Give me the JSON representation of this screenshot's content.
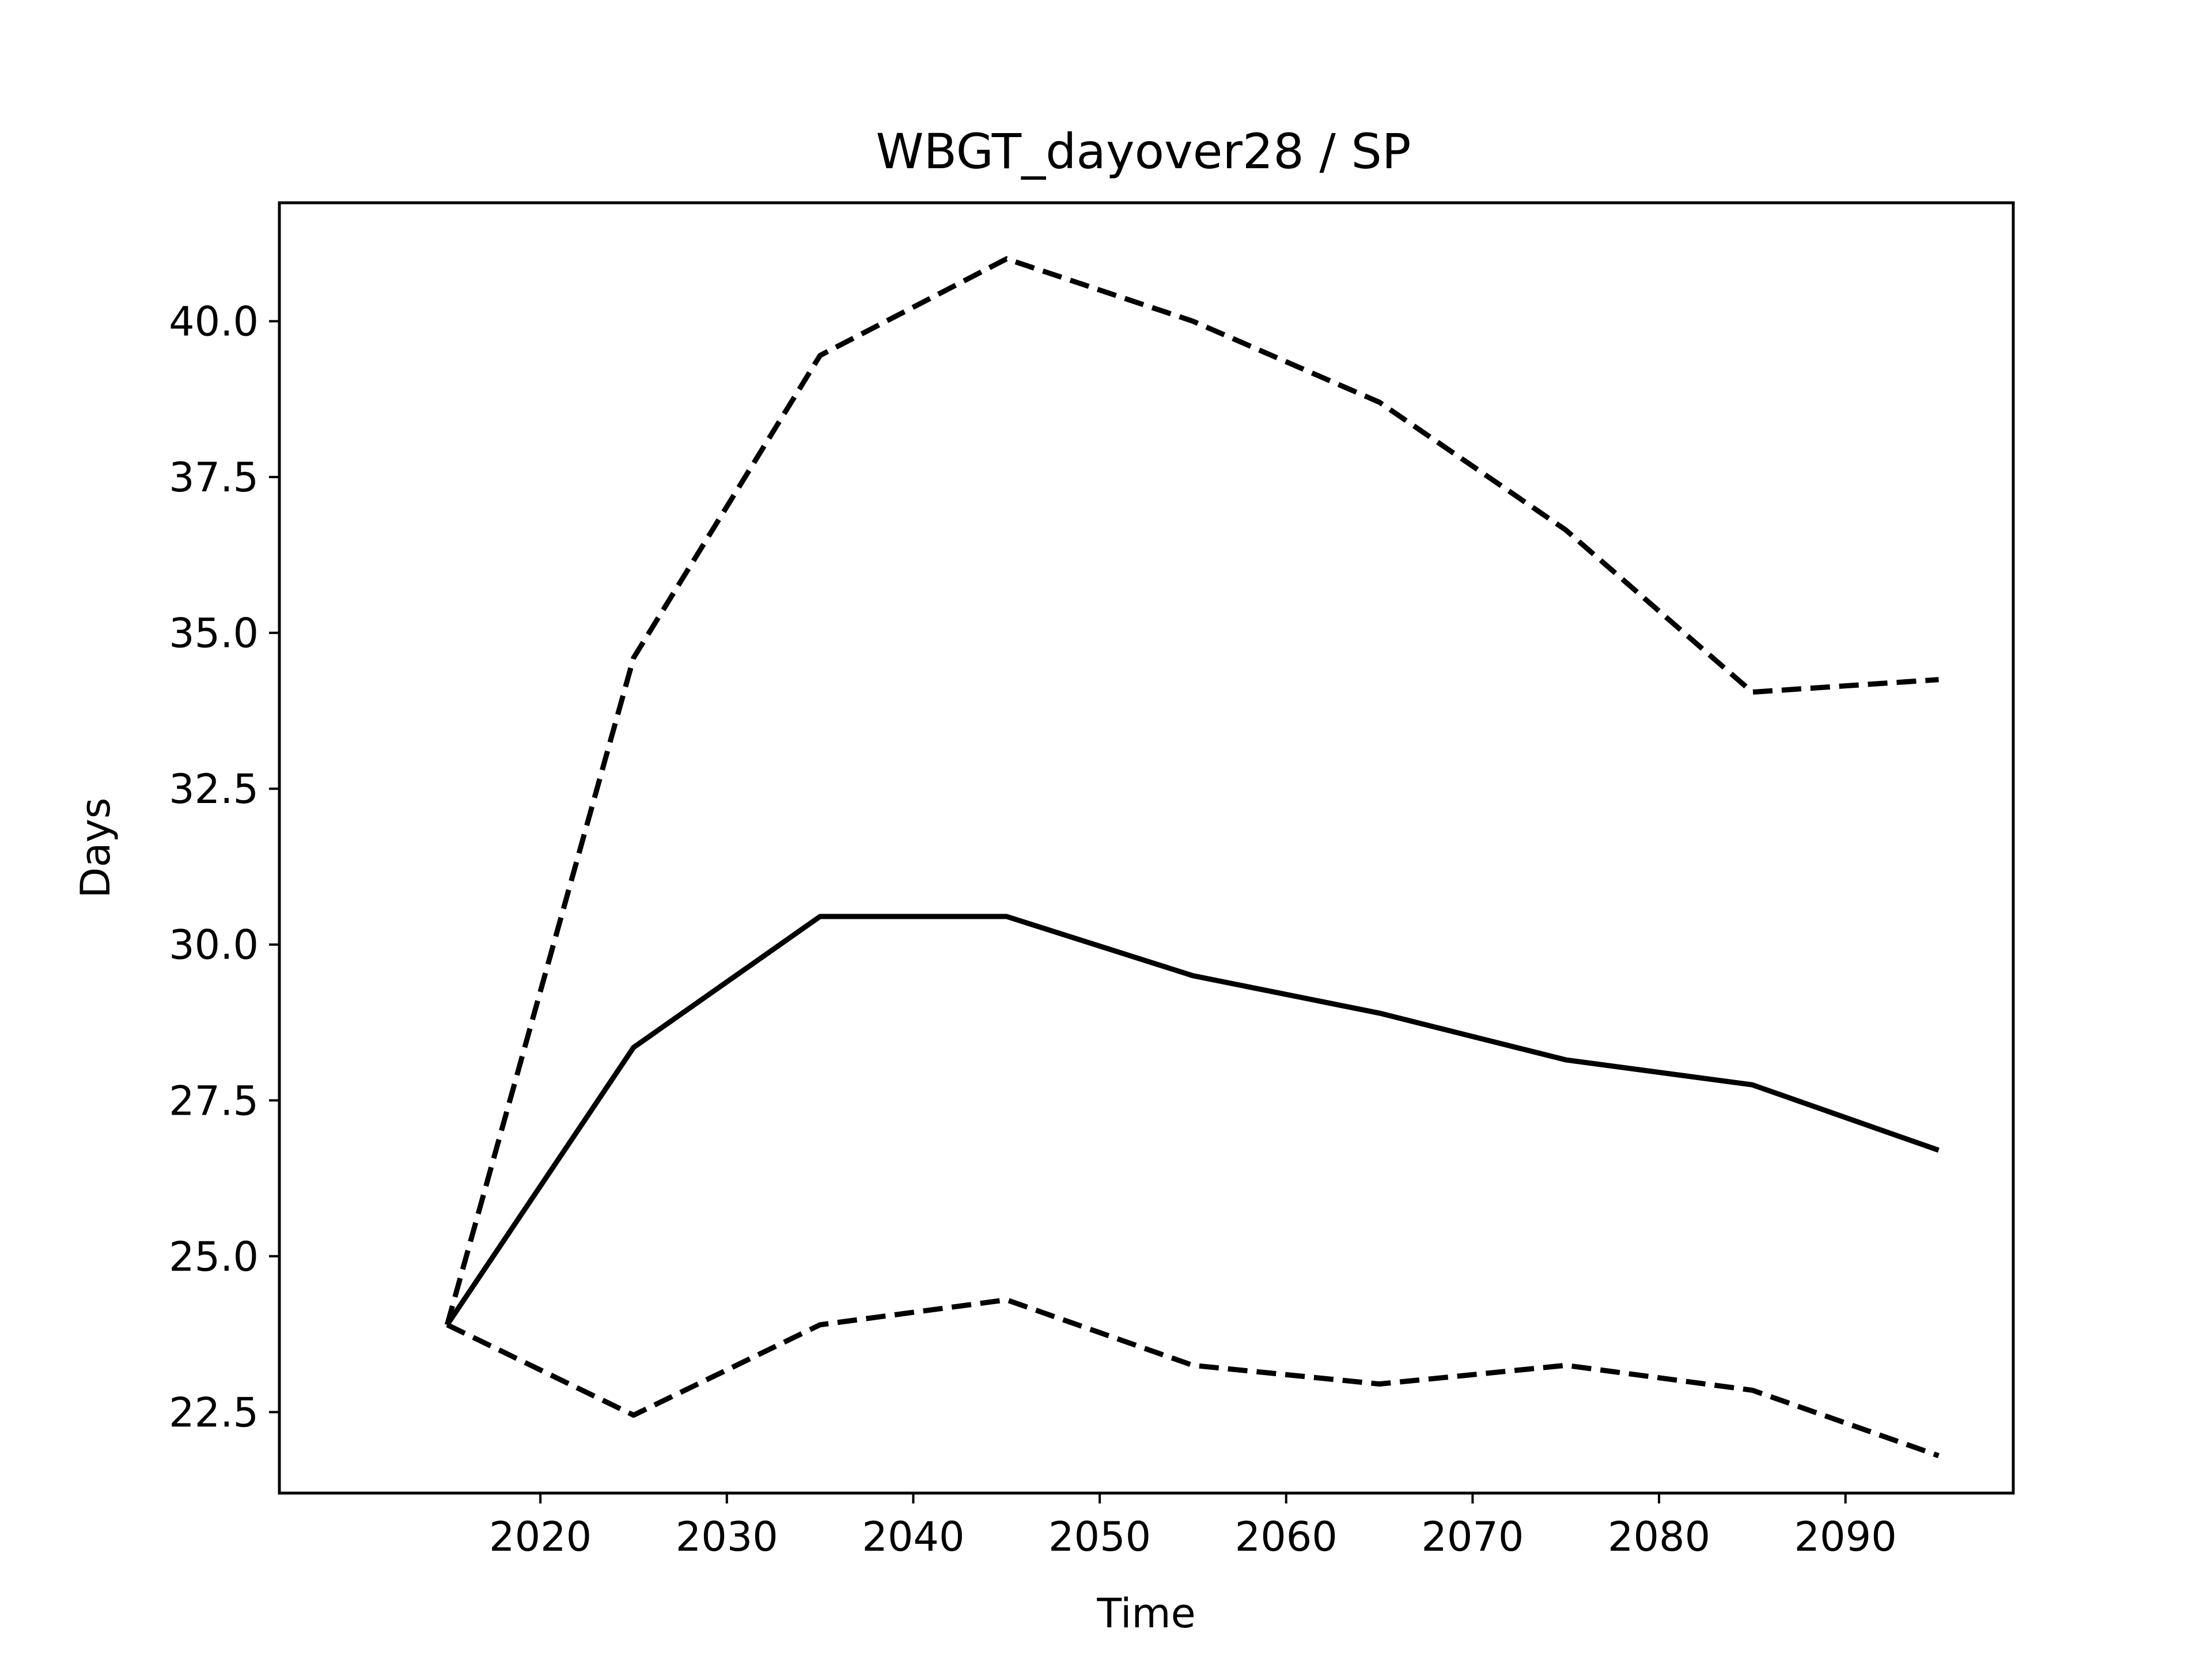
{
  "chart_data": {
    "type": "line",
    "title": "WBGT_dayover28 / SP",
    "xlabel": "Time",
    "ylabel": "Days",
    "x": [
      2015,
      2025,
      2035,
      2045,
      2055,
      2065,
      2075,
      2085,
      2095
    ],
    "xlim": [
      2006,
      2099
    ],
    "ylim": [
      21.2,
      41.9
    ],
    "xticks": [
      2020,
      2030,
      2040,
      2050,
      2060,
      2070,
      2080,
      2090
    ],
    "yticks": [
      22.5,
      25.0,
      27.5,
      30.0,
      32.5,
      35.0,
      37.5,
      40.0
    ],
    "grid": false,
    "legend": "none",
    "series": [
      {
        "style": "solid",
        "color": "#000000",
        "values": [
          23.9,
          28.35,
          30.45,
          30.45,
          29.5,
          28.9,
          28.15,
          27.75,
          26.7
        ]
      },
      {
        "style": "dashed",
        "color": "#000000",
        "values": [
          23.9,
          34.6,
          39.45,
          41.0,
          40.0,
          38.7,
          36.65,
          34.05,
          34.25
        ]
      },
      {
        "style": "dashed",
        "color": "#000000",
        "values": [
          23.9,
          22.45,
          23.9,
          24.3,
          23.25,
          22.95,
          23.25,
          22.85,
          21.8
        ]
      }
    ]
  }
}
